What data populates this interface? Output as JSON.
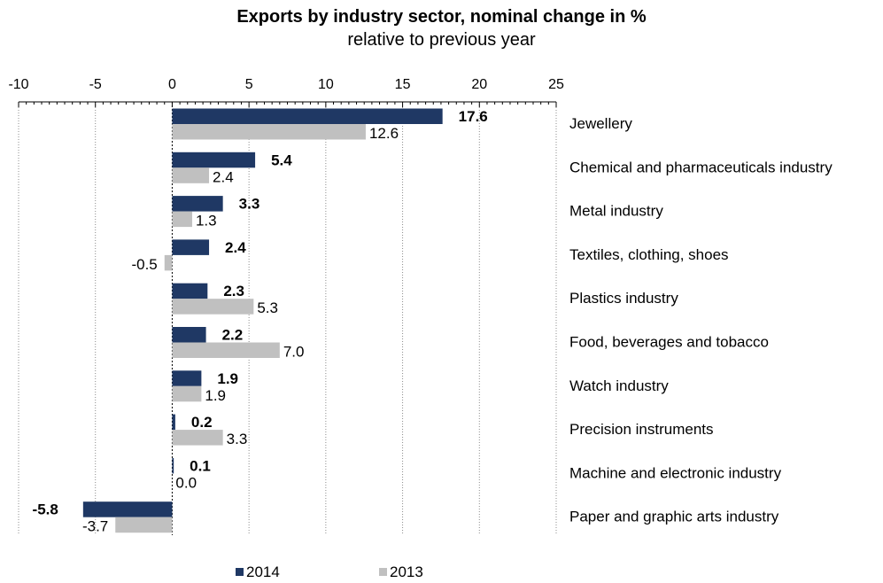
{
  "chart_data": {
    "type": "bar",
    "orientation": "horizontal",
    "title": "Exports by industry sector, nominal change in %",
    "subtitle": "relative to previous year",
    "categories": [
      "Jewellery",
      "Chemical and pharmaceuticals industry",
      "Metal industry",
      "Textiles, clothing, shoes",
      "Plastics industry",
      "Food, beverages and tobacco",
      "Watch industry",
      "Precision instruments",
      "Machine and electronic industry",
      "Paper and graphic arts industry"
    ],
    "series": [
      {
        "name": "2014",
        "color": "#1f3864",
        "values": [
          17.6,
          5.4,
          3.3,
          2.4,
          2.3,
          2.2,
          1.9,
          0.2,
          0.1,
          -5.8
        ],
        "labels": [
          "17.6",
          "5.4",
          "3.3",
          "2.4",
          "2.3",
          "2.2",
          "1.9",
          "0.2",
          "0.1",
          "-5.8"
        ]
      },
      {
        "name": "2013",
        "color": "#c0c0c0",
        "values": [
          12.6,
          2.4,
          1.3,
          -0.5,
          5.3,
          7.0,
          1.9,
          3.3,
          0.0,
          -3.7
        ],
        "labels": [
          "12.6",
          "2.4",
          "1.3",
          "-0.5",
          "5.3",
          "7.0",
          "1.9",
          "3.3",
          "0.0",
          "-3.7"
        ]
      }
    ],
    "xlim": [
      -10,
      25
    ],
    "ticks": [
      "-10",
      "-5",
      "0",
      "5",
      "10",
      "15",
      "20",
      "25"
    ],
    "grid": true,
    "legend_position": "bottom"
  }
}
